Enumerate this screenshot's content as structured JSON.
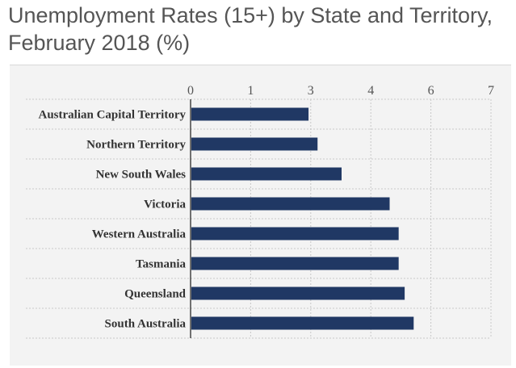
{
  "title_line1": "Unemployment Rates (15+) by State and Territory,",
  "title_line2": "February 2018 (%)",
  "colors": {
    "bar": "#203864",
    "grid": "#c8c8c8",
    "panel": "#f3f3f3"
  },
  "chart_data": {
    "type": "bar",
    "orientation": "horizontal",
    "title": "Unemployment Rates (15+) by State and Territory, February 2018 (%)",
    "xlabel": "",
    "ylabel": "",
    "x_ticks": [
      0,
      1,
      3,
      4,
      6,
      7
    ],
    "xlim": [
      0,
      7
    ],
    "grid": true,
    "categories": [
      "Australian Capital Territory",
      "Northern Territory",
      "New South Wales",
      "Victoria",
      "Western Australia",
      "Tasmania",
      "Queensland",
      "South Australia"
    ],
    "values": [
      2.9,
      3.1,
      3.5,
      4.6,
      4.9,
      4.9,
      5.1,
      5.4
    ]
  }
}
